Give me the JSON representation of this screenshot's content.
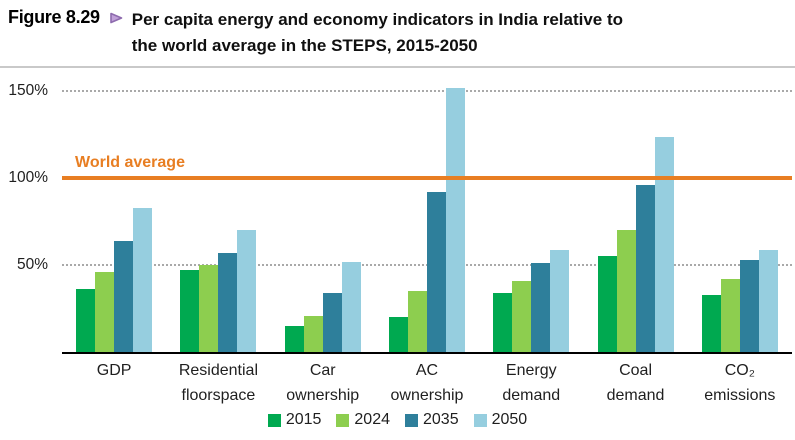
{
  "figure": {
    "label": "Figure 8.29",
    "title_line1": "Per capita energy and economy indicators in India relative to",
    "title_line2": "the world average in the STEPS, 2015-2050"
  },
  "colors": {
    "accent_orange": "#E87E22",
    "arrow_purple_fill": "#c0a0d8",
    "arrow_purple_stroke": "#8e6bae"
  },
  "chart_data": {
    "type": "bar",
    "title": "Per capita energy and economy indicators in India relative to the world average in the STEPS, 2015-2050",
    "categories": [
      "GDP",
      "Residential\nfloorspace",
      "Car\nownership",
      "AC\nownership",
      "Energy\ndemand",
      "Coal\ndemand",
      "CO₂\nemissions"
    ],
    "series": [
      {
        "name": "2015",
        "color": "#00A950",
        "values": [
          36,
          47,
          15,
          20,
          34,
          55,
          33
        ]
      },
      {
        "name": "2024",
        "color": "#8DCE4F",
        "values": [
          46,
          50,
          21,
          35,
          41,
          70,
          42
        ]
      },
      {
        "name": "2035",
        "color": "#2E7F9B",
        "values": [
          64,
          57,
          34,
          92,
          51,
          96,
          53
        ]
      },
      {
        "name": "2050",
        "color": "#96CEDF",
        "values": [
          83,
          70,
          52,
          152,
          59,
          124,
          59
        ]
      }
    ],
    "y_axis": {
      "max": 160,
      "unit": "%",
      "ticks": [
        {
          "value": 50,
          "label": "50%",
          "grid": "dotted"
        },
        {
          "value": 100,
          "label": "100%",
          "grid": "none"
        },
        {
          "value": 150,
          "label": "150%",
          "grid": "dotted"
        }
      ]
    },
    "reference_line": {
      "value": 100,
      "label": "World average",
      "color": "#E87E22"
    },
    "grid": "horizontal-dotted",
    "legend_position": "bottom"
  }
}
